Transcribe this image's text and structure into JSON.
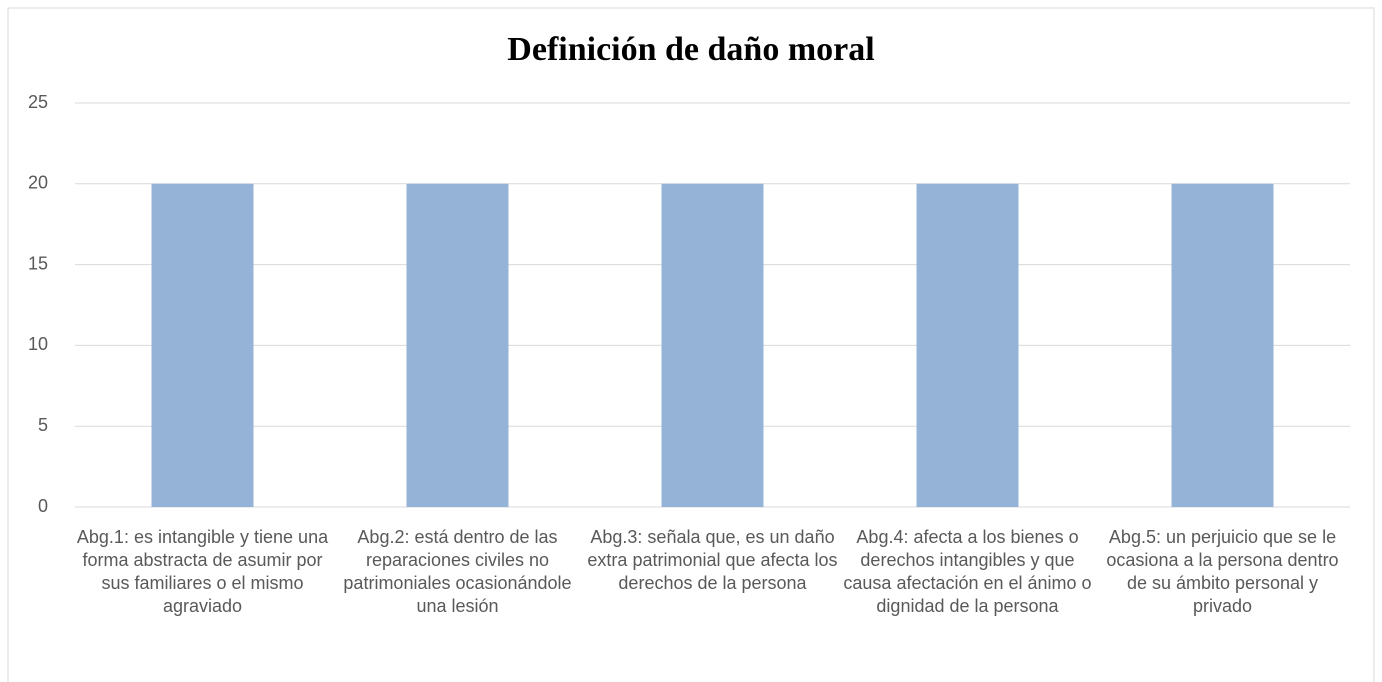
{
  "chart_data": {
    "type": "bar",
    "title": "Definición de daño moral",
    "categories": [
      "Abg.1: es intangible y tiene una forma abstracta de asumir por sus familiares o el mismo agraviado",
      "Abg.2: está dentro de las reparaciones civiles no patrimoniales ocasionándole una lesión",
      "Abg.3: señala que, es un daño extra patrimonial que afecta los derechos de la persona",
      "Abg.4: afecta a los bienes o derechos intangibles y que causa afectación en el ánimo o dignidad de la persona",
      "Abg.5: un perjuicio que se le ocasiona a la persona dentro de su ámbito personal y privado"
    ],
    "values": [
      20,
      20,
      20,
      20,
      20
    ],
    "color": "#95b3d7",
    "ylim": [
      0,
      25
    ],
    "yticks": [
      0,
      5,
      10,
      15,
      20,
      25
    ],
    "grid": true
  }
}
